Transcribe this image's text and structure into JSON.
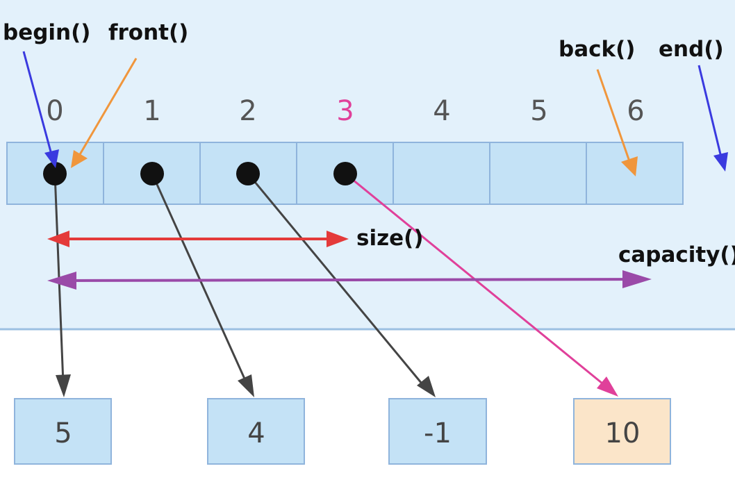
{
  "labels": {
    "begin": "begin()",
    "front": "front()",
    "back": "back()",
    "end": "end()",
    "size": "size()",
    "capacity": "capacity()"
  },
  "indices": [
    "0",
    "1",
    "2",
    "3",
    "4",
    "5",
    "6"
  ],
  "highlight_index": "3",
  "values": [
    "5",
    "4",
    "-1",
    "10"
  ],
  "colors": {
    "region_bg": "#e3f1fb",
    "cell_fill": "#c4e2f6",
    "cell_stroke": "#8fb4dc",
    "highlight_value_fill": "#fbe5c9",
    "begin_end_arrow": "#3a3adf",
    "front_back_arrow": "#f0963c",
    "size_arrow": "#e43a3a",
    "capacity_arrow": "#9a4aa8",
    "pointer": "#444444",
    "last_pointer": "#e0409a",
    "highlight_index": "#e0409a"
  }
}
